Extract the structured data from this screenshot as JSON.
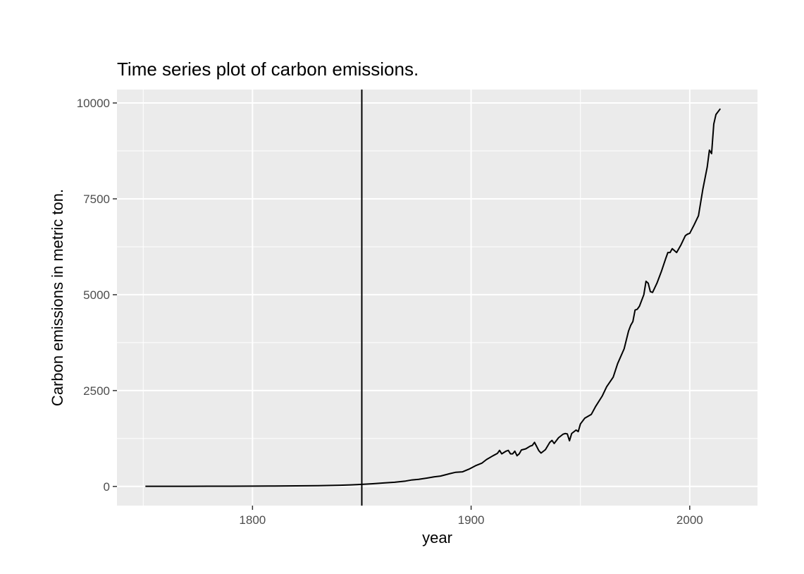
{
  "chart_data": {
    "type": "line",
    "title": "Time series plot of carbon emissions.",
    "xlabel": "year",
    "ylabel": "Carbon emissions in metric ton.",
    "xlim": [
      1738,
      2031
    ],
    "ylim": [
      -500,
      10350
    ],
    "x_ticks": [
      1800,
      1900,
      2000
    ],
    "y_ticks": [
      0,
      2500,
      5000,
      7500,
      10000
    ],
    "x_tick_labels": [
      "1800",
      "1900",
      "2000"
    ],
    "y_tick_labels": [
      "0",
      "2500",
      "5000",
      "7500",
      "10000"
    ],
    "x_minor_ticks": [
      1750,
      1850,
      1950
    ],
    "y_minor_ticks": [
      1250,
      3750,
      6250,
      8750
    ],
    "grid": true,
    "legend": "none",
    "colors": {
      "panel": "#ebebeb",
      "grid": "#ffffff",
      "line": "#000000",
      "vline": "#000000"
    },
    "vline_x": 1850,
    "series": [
      {
        "x": [
          1751,
          1760,
          1770,
          1780,
          1790,
          1800,
          1810,
          1820,
          1830,
          1840,
          1845,
          1850,
          1855,
          1860,
          1865,
          1870,
          1873,
          1876,
          1880,
          1883,
          1886,
          1890,
          1893,
          1896,
          1899,
          1902,
          1905,
          1907,
          1910,
          1912,
          1913,
          1914,
          1916,
          1917,
          1918,
          1919,
          1920,
          1921,
          1922,
          1923,
          1925,
          1927,
          1928,
          1929,
          1930,
          1931,
          1932,
          1934,
          1936,
          1937,
          1938,
          1940,
          1942,
          1943,
          1944,
          1945,
          1946,
          1948,
          1949,
          1950,
          1952,
          1955,
          1957,
          1960,
          1962,
          1965,
          1967,
          1970,
          1972,
          1973,
          1974,
          1975,
          1976,
          1977,
          1979,
          1980,
          1981,
          1982,
          1983,
          1985,
          1987,
          1989,
          1990,
          1991,
          1992,
          1994,
          1996,
          1998,
          1999,
          2000,
          2002,
          2004,
          2006,
          2008,
          2009,
          2010,
          2011,
          2012,
          2014
        ],
        "y": [
          3,
          3,
          4,
          5,
          6,
          8,
          10,
          14,
          20,
          30,
          40,
          54,
          70,
          90,
          110,
          140,
          170,
          185,
          220,
          250,
          270,
          330,
          370,
          380,
          450,
          540,
          610,
          700,
          800,
          860,
          940,
          850,
          920,
          940,
          850,
          850,
          920,
          800,
          850,
          950,
          980,
          1050,
          1070,
          1150,
          1040,
          930,
          870,
          960,
          1150,
          1200,
          1120,
          1270,
          1360,
          1380,
          1370,
          1190,
          1380,
          1470,
          1430,
          1630,
          1780,
          1880,
          2090,
          2360,
          2600,
          2850,
          3200,
          3590,
          4050,
          4200,
          4300,
          4600,
          4620,
          4700,
          5000,
          5350,
          5300,
          5080,
          5060,
          5300,
          5600,
          5940,
          6100,
          6100,
          6200,
          6100,
          6300,
          6540,
          6580,
          6600,
          6820,
          7060,
          7750,
          8330,
          8770,
          8680,
          9450,
          9700,
          9850
        ]
      }
    ]
  }
}
